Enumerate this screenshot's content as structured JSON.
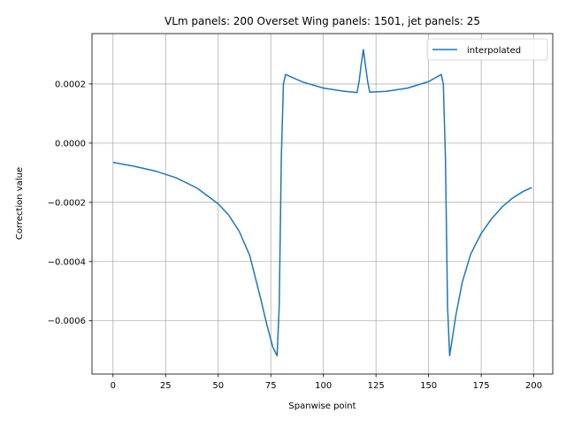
{
  "chart_data": {
    "type": "line",
    "title": "VLm panels: 200 Overset Wing panels: 1501, jet panels: 25",
    "xlabel": "Spanwise point",
    "ylabel": "Correction value",
    "xlim": [
      -10,
      209
    ],
    "ylim": [
      -0.00078,
      0.00037
    ],
    "xticks": [
      0,
      25,
      50,
      75,
      100,
      125,
      150,
      175,
      200
    ],
    "yticks": [
      -0.0006,
      -0.0004,
      -0.0002,
      0.0,
      0.0002
    ],
    "xtick_labels": [
      "0",
      "25",
      "50",
      "75",
      "100",
      "125",
      "150",
      "175",
      "200"
    ],
    "ytick_labels": [
      "−0.0006",
      "−0.0004",
      "−0.0002",
      "0.0000",
      "0.0002"
    ],
    "grid": true,
    "legend_position": "top-right",
    "series": [
      {
        "name": "interpolated",
        "color": "#1f77b4",
        "x": [
          0,
          10,
          20,
          30,
          40,
          50,
          55,
          60,
          65,
          70,
          73,
          76,
          78,
          79,
          80,
          81,
          82,
          90,
          100,
          110,
          116,
          117,
          118,
          119,
          120,
          121,
          122,
          130,
          140,
          150,
          156,
          157,
          158,
          159,
          160,
          163,
          166,
          170,
          175,
          180,
          185,
          190,
          195,
          199
        ],
        "y": [
          -6.5e-05,
          -7.8e-05,
          -9.4e-05,
          -0.000117,
          -0.000152,
          -0.000205,
          -0.000243,
          -0.000298,
          -0.00038,
          -0.00052,
          -0.00061,
          -0.00069,
          -0.000718,
          -0.00055,
          -5e-05,
          0.0002,
          0.000232,
          0.000207,
          0.000186,
          0.000175,
          0.000171,
          0.00021,
          0.000268,
          0.000316,
          0.000262,
          0.00021,
          0.000172,
          0.000175,
          0.000186,
          0.000208,
          0.000232,
          0.0002,
          -5e-05,
          -0.00055,
          -0.000718,
          -0.00058,
          -0.00047,
          -0.000375,
          -0.000305,
          -0.000255,
          -0.000215,
          -0.000185,
          -0.000163,
          -0.00015
        ]
      }
    ]
  }
}
